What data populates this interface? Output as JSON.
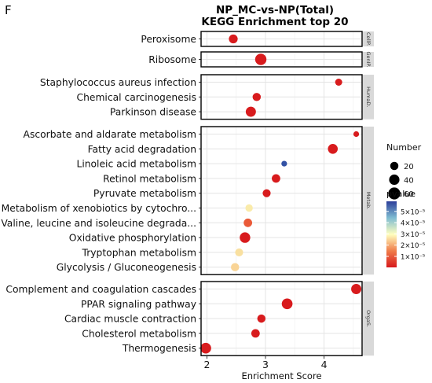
{
  "figure": {
    "panel_letter": "F",
    "title_line1": "NP_MC-vs-NP(Total)",
    "title_line2": "KEGG Enrichment top 20"
  },
  "chart_data": {
    "type": "scatter",
    "title": "NP_MC-vs-NP(Total) KEGG Enrichment top 20",
    "xlabel": "Enrichment Score",
    "ylabel": "",
    "xlim": [
      1.9,
      4.65
    ],
    "xticks": [
      2,
      3,
      4
    ],
    "grid": true,
    "legend_position": "right",
    "size_legend": {
      "title": "Number",
      "values": [
        20,
        40,
        60
      ]
    },
    "color_legend": {
      "title": "pvalue",
      "ticks": [
        "1×10⁻⁵",
        "2×10⁻⁵",
        "3×10⁻⁵",
        "4×10⁻⁵",
        "5×10⁻⁵"
      ],
      "colors": [
        "#d7191c",
        "#f07c4a",
        "#ffffbf",
        "#7fbcd2",
        "#2c3e9a"
      ]
    },
    "facets": [
      {
        "label": "CellP.",
        "terms": [
          {
            "name": "Peroxisome",
            "x": 2.45,
            "number": 25,
            "pvalue": 1e-06
          }
        ]
      },
      {
        "label": "GenIP.",
        "terms": [
          {
            "name": "Ribosome",
            "x": 2.92,
            "number": 52,
            "pvalue": 1e-06
          }
        ]
      },
      {
        "label": "HumaD.",
        "terms": [
          {
            "name": "Staphylococcus aureus infection",
            "x": 4.25,
            "number": 12,
            "pvalue": 1.5e-06
          },
          {
            "name": "Chemical carcinogenesis",
            "x": 2.85,
            "number": 20,
            "pvalue": 1e-06
          },
          {
            "name": "Parkinson disease",
            "x": 2.75,
            "number": 38,
            "pvalue": 1e-06
          }
        ]
      },
      {
        "label": "Metab.",
        "terms": [
          {
            "name": "Ascorbate and aldarate metabolism",
            "x": 4.55,
            "number": 5,
            "pvalue": 1e-06
          },
          {
            "name": "Fatty acid degradation",
            "x": 4.15,
            "number": 35,
            "pvalue": 1e-06
          },
          {
            "name": "Linoleic acid metabolism",
            "x": 3.32,
            "number": 5,
            "pvalue": 5.6e-05
          },
          {
            "name": "Retinol metabolism",
            "x": 3.18,
            "number": 22,
            "pvalue": 1e-06
          },
          {
            "name": "Pyruvate metabolism",
            "x": 3.02,
            "number": 18,
            "pvalue": 1e-06
          },
          {
            "name": "Metabolism of xenobiotics by cytochro...",
            "x": 2.72,
            "number": 14,
            "pvalue": 3e-05
          },
          {
            "name": "Valine, leucine and isoleucine degrada...",
            "x": 2.7,
            "number": 22,
            "pvalue": 1.6e-05
          },
          {
            "name": "Oxidative phosphorylation",
            "x": 2.65,
            "number": 42,
            "pvalue": 1e-06
          },
          {
            "name": "Tryptophan metabolism",
            "x": 2.55,
            "number": 18,
            "pvalue": 2.9e-05
          },
          {
            "name": "Glycolysis / Gluconeogenesis",
            "x": 2.48,
            "number": 20,
            "pvalue": 2.8e-05
          }
        ]
      },
      {
        "label": "OrgaS.",
        "terms": [
          {
            "name": "Complement and coagulation cascades",
            "x": 4.55,
            "number": 38,
            "pvalue": 1e-06
          },
          {
            "name": "PPAR signaling pathway",
            "x": 3.37,
            "number": 45,
            "pvalue": 1e-06
          },
          {
            "name": "Cardiac muscle contraction",
            "x": 2.93,
            "number": 20,
            "pvalue": 1e-06
          },
          {
            "name": "Cholesterol metabolism",
            "x": 2.83,
            "number": 22,
            "pvalue": 1e-06
          },
          {
            "name": "Thermogenesis",
            "x": 1.98,
            "number": 45,
            "pvalue": 1e-06
          }
        ]
      }
    ]
  }
}
